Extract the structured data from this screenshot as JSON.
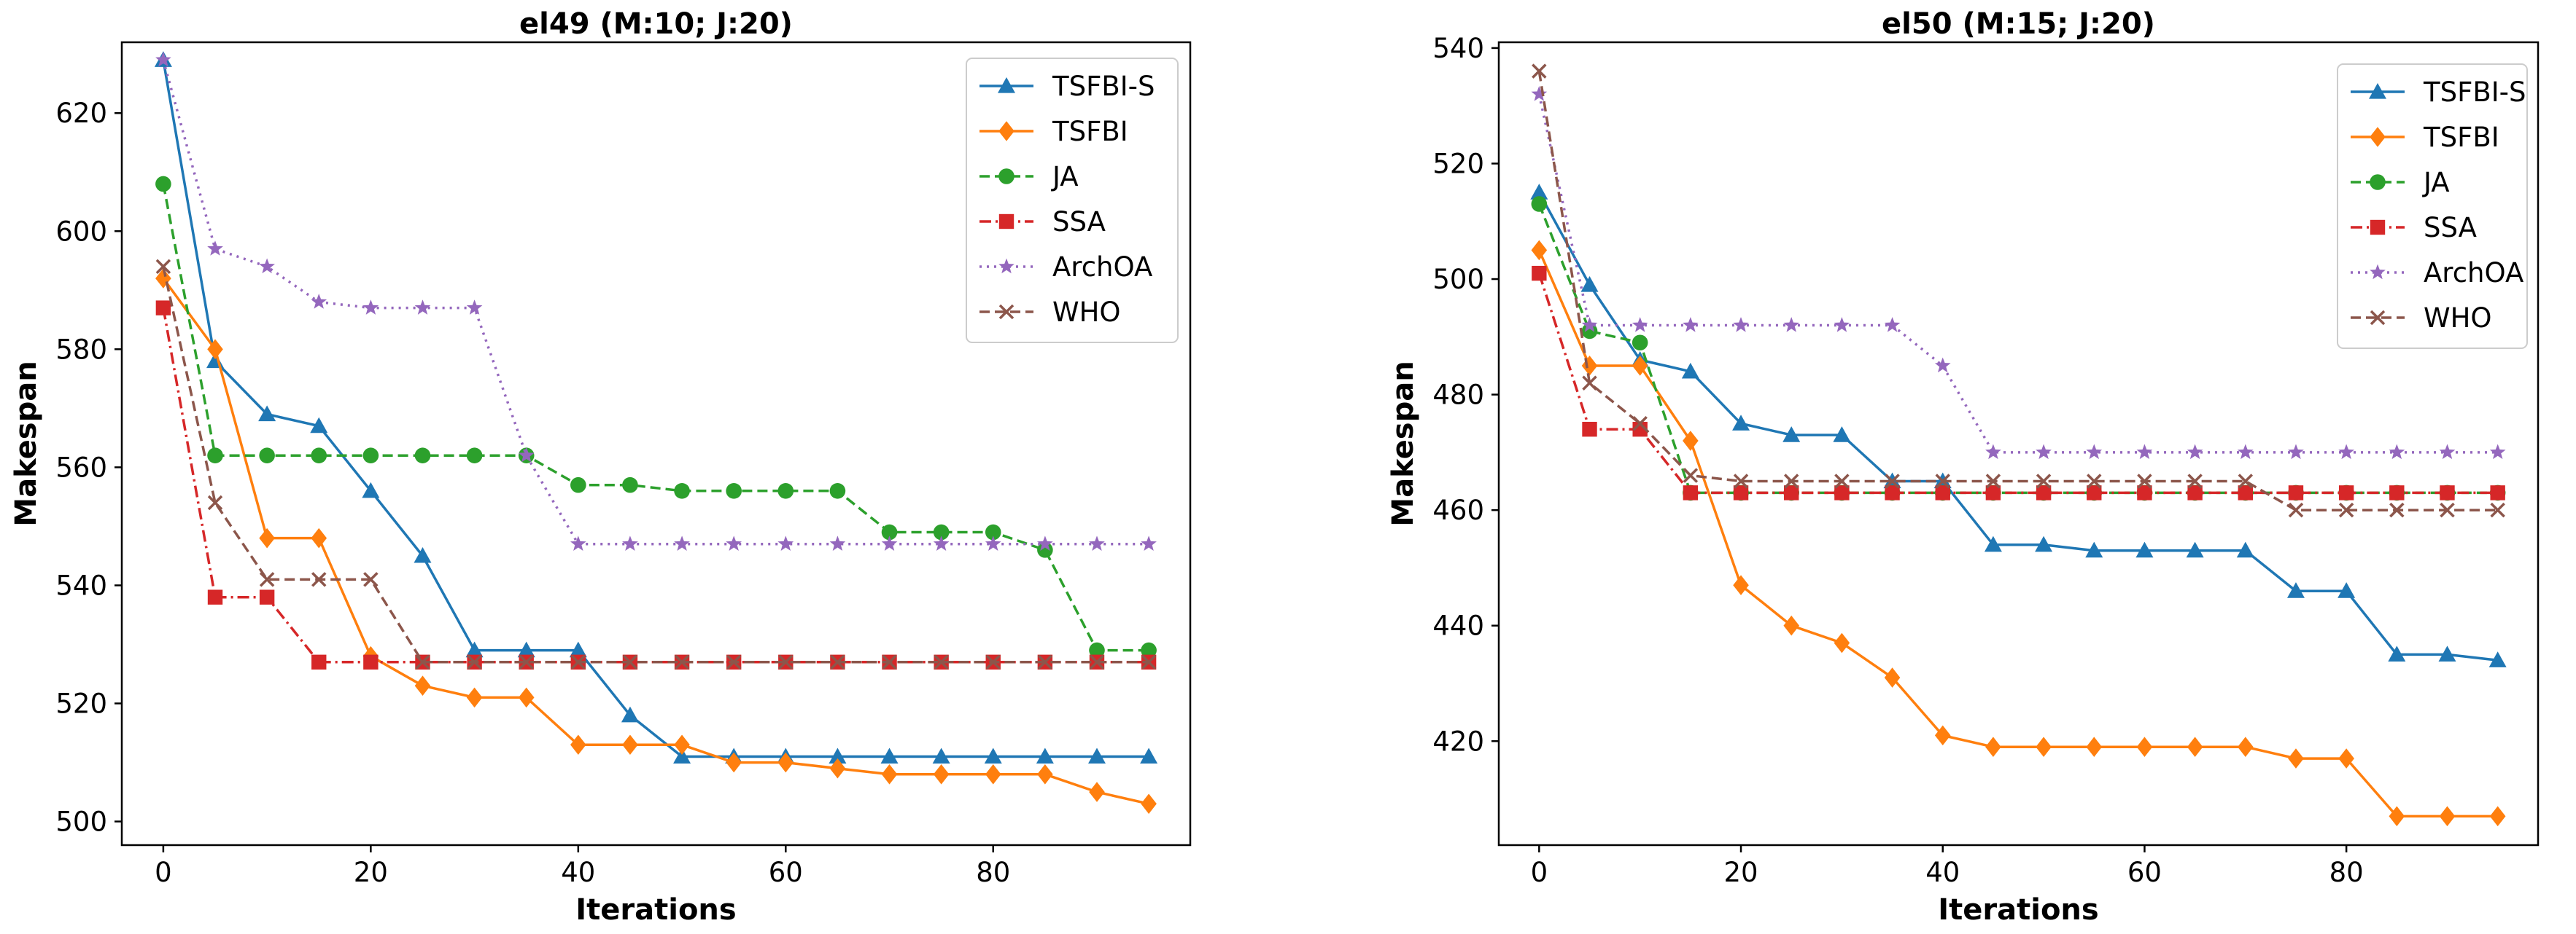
{
  "chart_data": [
    {
      "type": "line",
      "title": "el49 (M:10; J:20)",
      "xlabel": "Iterations",
      "ylabel": "Makespan",
      "xlim": [
        -4,
        99
      ],
      "ylim": [
        496,
        632
      ],
      "xticks": [
        0,
        20,
        40,
        60,
        80
      ],
      "yticks": [
        500,
        520,
        540,
        560,
        580,
        600,
        620
      ],
      "legend": "top-right",
      "x": [
        0,
        5,
        10,
        15,
        20,
        25,
        30,
        35,
        40,
        45,
        50,
        55,
        60,
        65,
        70,
        75,
        80,
        85,
        90,
        95
      ],
      "series": [
        {
          "name": "TSFBI-S",
          "color": "#1f77b4",
          "dash": "solid",
          "marker": "triangle",
          "values": [
            629,
            578,
            569,
            567,
            556,
            545,
            529,
            529,
            529,
            518,
            511,
            511,
            511,
            511,
            511,
            511,
            511,
            511,
            511,
            511
          ]
        },
        {
          "name": "TSFBI",
          "color": "#ff7f0e",
          "dash": "solid",
          "marker": "diamond",
          "values": [
            592,
            580,
            548,
            548,
            528,
            523,
            521,
            521,
            513,
            513,
            513,
            510,
            510,
            509,
            508,
            508,
            508,
            508,
            505,
            503
          ]
        },
        {
          "name": "JA",
          "color": "#2ca02c",
          "dash": "dashed",
          "marker": "circle",
          "values": [
            608,
            562,
            562,
            562,
            562,
            562,
            562,
            562,
            557,
            557,
            556,
            556,
            556,
            556,
            549,
            549,
            549,
            546,
            529,
            529
          ]
        },
        {
          "name": "SSA",
          "color": "#d62728",
          "dash": "dashdot",
          "marker": "square",
          "values": [
            587,
            538,
            538,
            527,
            527,
            527,
            527,
            527,
            527,
            527,
            527,
            527,
            527,
            527,
            527,
            527,
            527,
            527,
            527,
            527
          ]
        },
        {
          "name": "ArchOA",
          "color": "#9467bd",
          "dash": "dotted",
          "marker": "star",
          "values": [
            629,
            597,
            594,
            588,
            587,
            587,
            587,
            562,
            547,
            547,
            547,
            547,
            547,
            547,
            547,
            547,
            547,
            547,
            547,
            547
          ]
        },
        {
          "name": "WHO",
          "color": "#8c564b",
          "dash": "dashed",
          "marker": "x",
          "values": [
            594,
            554,
            541,
            541,
            541,
            527,
            527,
            527,
            527,
            527,
            527,
            527,
            527,
            527,
            527,
            527,
            527,
            527,
            527,
            527
          ]
        }
      ]
    },
    {
      "type": "line",
      "title": "el50 (M:15; J:20)",
      "xlabel": "Iterations",
      "ylabel": "Makespan",
      "xlim": [
        -4,
        99
      ],
      "ylim": [
        402,
        541
      ],
      "xticks": [
        0,
        20,
        40,
        60,
        80
      ],
      "yticks": [
        420,
        440,
        460,
        480,
        500,
        520,
        540
      ],
      "legend": "top-right",
      "x": [
        0,
        5,
        10,
        15,
        20,
        25,
        30,
        35,
        40,
        45,
        50,
        55,
        60,
        65,
        70,
        75,
        80,
        85,
        90,
        95
      ],
      "series": [
        {
          "name": "TSFBI-S",
          "color": "#1f77b4",
          "dash": "solid",
          "marker": "triangle",
          "values": [
            515,
            499,
            486,
            484,
            475,
            473,
            473,
            465,
            465,
            454,
            454,
            453,
            453,
            453,
            453,
            446,
            446,
            435,
            435,
            434
          ]
        },
        {
          "name": "TSFBI",
          "color": "#ff7f0e",
          "dash": "solid",
          "marker": "diamond",
          "values": [
            505,
            485,
            485,
            472,
            447,
            440,
            437,
            431,
            421,
            419,
            419,
            419,
            419,
            419,
            419,
            417,
            417,
            407,
            407,
            407
          ]
        },
        {
          "name": "JA",
          "color": "#2ca02c",
          "dash": "dashed",
          "marker": "circle",
          "values": [
            513,
            491,
            489,
            463,
            463,
            463,
            463,
            463,
            463,
            463,
            463,
            463,
            463,
            463,
            463,
            463,
            463,
            463,
            463,
            463
          ]
        },
        {
          "name": "SSA",
          "color": "#d62728",
          "dash": "dashdot",
          "marker": "square",
          "values": [
            501,
            474,
            474,
            463,
            463,
            463,
            463,
            463,
            463,
            463,
            463,
            463,
            463,
            463,
            463,
            463,
            463,
            463,
            463,
            463
          ]
        },
        {
          "name": "ArchOA",
          "color": "#9467bd",
          "dash": "dotted",
          "marker": "star",
          "values": [
            532,
            492,
            492,
            492,
            492,
            492,
            492,
            492,
            485,
            470,
            470,
            470,
            470,
            470,
            470,
            470,
            470,
            470,
            470,
            470
          ]
        },
        {
          "name": "WHO",
          "color": "#8c564b",
          "dash": "dashed",
          "marker": "x",
          "values": [
            536,
            482,
            475,
            466,
            465,
            465,
            465,
            465,
            465,
            465,
            465,
            465,
            465,
            465,
            465,
            460,
            460,
            460,
            460,
            460
          ]
        }
      ]
    }
  ]
}
